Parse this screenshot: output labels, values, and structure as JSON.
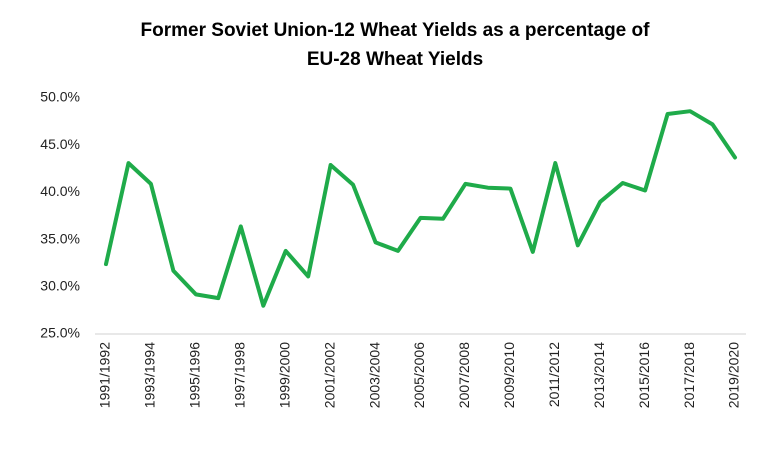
{
  "chart_data": {
    "type": "line",
    "title": [
      "Former Soviet Union-12  Wheat Yields as a percentage of",
      "EU-28 Wheat Yields"
    ],
    "categories": [
      "1991/1992",
      null,
      "1993/1994",
      null,
      "1995/1996",
      null,
      "1997/1998",
      null,
      "1999/2000",
      null,
      "2001/2002",
      null,
      "2003/2004",
      null,
      "2005/2006",
      null,
      "2007/2008",
      null,
      "2009/2010",
      null,
      "2011/2012",
      null,
      "2013/2014",
      null,
      "2015/2016",
      null,
      "2017/2018",
      null,
      "2019/2020"
    ],
    "values": [
      32.4,
      43.1,
      40.9,
      31.7,
      29.2,
      28.8,
      36.4,
      28.0,
      33.8,
      31.1,
      42.9,
      40.8,
      34.7,
      33.8,
      37.3,
      37.2,
      40.9,
      40.5,
      40.4,
      33.7,
      43.1,
      34.4,
      39.0,
      41.0,
      40.2,
      48.3,
      48.6,
      47.2,
      43.7
    ],
    "color": "#1fab4a",
    "ylim": [
      25,
      50
    ],
    "yticks": [
      {
        "value": 25,
        "label": "25.0%"
      },
      {
        "value": 30,
        "label": "30.0%"
      },
      {
        "value": 35,
        "label": "35.0%"
      },
      {
        "value": 40,
        "label": "40.0%"
      },
      {
        "value": 45,
        "label": "45.0%"
      },
      {
        "value": 50,
        "label": "50.0%"
      }
    ],
    "grid": false
  }
}
